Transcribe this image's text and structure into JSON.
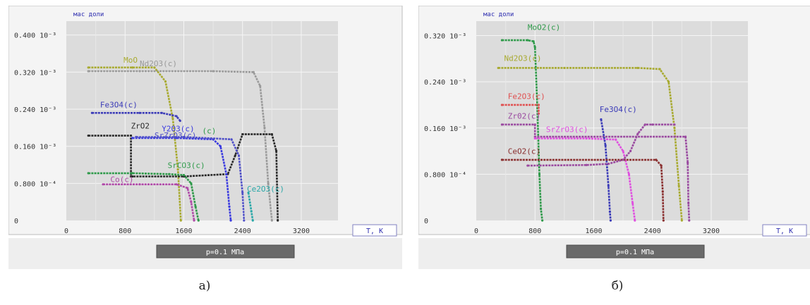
{
  "panels": [
    {
      "caption": "а)",
      "unit_label": "мас доли",
      "xlabel_box": "T, K",
      "status_bar": "p=0.1 МПа",
      "chart_data": {
        "type": "line",
        "xlabel": "T, K",
        "ylabel": "мас доли",
        "xlim": [
          0,
          3700
        ],
        "ylim": [
          0,
          0.43
        ],
        "xticks": [
          0,
          800,
          1600,
          2400,
          3200
        ],
        "yticks": [
          0,
          0.08,
          0.16,
          0.24,
          0.32,
          0.4
        ],
        "ytick_labels": [
          "0",
          "0.800 10⁻⁴",
          "0.160 10⁻³",
          "0.240 10⁻³",
          "0.320 10⁻³",
          "0.400 10⁻³"
        ],
        "grid": true,
        "series": [
          {
            "name": "Nd2O3(c)",
            "color": "#9a9a9a",
            "x": [
              300,
              1000,
              2000,
              2550,
              2640,
              2700,
              2750,
              2800
            ],
            "y": [
              0.322,
              0.322,
              0.322,
              0.32,
              0.29,
              0.2,
              0.08,
              0.0
            ]
          },
          {
            "name": "MoO",
            "color": "#a8aa30",
            "x": [
              300,
              900,
              1200,
              1350,
              1450,
              1520,
              1560
            ],
            "y": [
              0.33,
              0.33,
              0.33,
              0.3,
              0.22,
              0.11,
              0.0
            ]
          },
          {
            "name": "Fe3O4(c)",
            "color": "#3c3cb8",
            "x": [
              350,
              1000,
              1300,
              1500,
              1550
            ],
            "y": [
              0.232,
              0.232,
              0.232,
              0.225,
              0.215
            ]
          },
          {
            "name": "ZrO2",
            "color": "#2a2a2a",
            "x": [
              300,
              880,
              880,
              900,
              1600,
              2200,
              2300,
              2400,
              2800,
              2860,
              2880
            ],
            "y": [
              0.183,
              0.183,
              0.095,
              0.095,
              0.095,
              0.1,
              0.14,
              0.186,
              0.186,
              0.15,
              0.0
            ]
          },
          {
            "name": "Y2O3(c)",
            "color": "#3a3ae0",
            "x": [
              900,
              1500,
              2000,
              2100,
              2180,
              2220,
              2240
            ],
            "y": [
              0.178,
              0.178,
              0.175,
              0.16,
              0.1,
              0.03,
              0.0
            ]
          },
          {
            "name": "SrZrO3(c)",
            "color": "#5050c8",
            "x": [
              950,
              1600,
              2250,
              2350,
              2400,
              2420
            ],
            "y": [
              0.18,
              0.18,
              0.175,
              0.14,
              0.06,
              0.0
            ]
          },
          {
            "name": "SrCO3(c)",
            "color": "#2f9a4a",
            "x": [
              300,
              900,
              1400,
              1600,
              1700,
              1760,
              1800
            ],
            "y": [
              0.102,
              0.102,
              0.1,
              0.098,
              0.08,
              0.03,
              0.0
            ]
          },
          {
            "name": "Co(c)",
            "color": "#b04aa8",
            "x": [
              500,
              1000,
              1500,
              1650,
              1700,
              1740
            ],
            "y": [
              0.078,
              0.078,
              0.078,
              0.07,
              0.04,
              0.0
            ]
          },
          {
            "name": "Ce2O3(c)",
            "color": "#2aa8a8",
            "x": [
              2480,
              2520,
              2540
            ],
            "y": [
              0.06,
              0.02,
              0.0
            ]
          }
        ],
        "labels": [
          {
            "text": "MoO",
            "color": "#a8aa30",
            "x": 780,
            "y": 0.34
          },
          {
            "text": "Nd2O3(c)",
            "color": "#9a9a9a",
            "x": 1000,
            "y": 0.333
          },
          {
            "text": "Fe3O4(c)",
            "color": "#3c3cb8",
            "x": 460,
            "y": 0.244
          },
          {
            "text": "ZrO2",
            "color": "#2a2a2a",
            "x": 880,
            "y": 0.198
          },
          {
            "text": "Y2O3(c)",
            "color": "#3a3ae0",
            "x": 1300,
            "y": 0.192
          },
          {
            "text": "(c)",
            "color": "#2f9a4a",
            "x": 1850,
            "y": 0.188
          },
          {
            "text": "SrZrO3(c)",
            "color": "#5050c8",
            "x": 1200,
            "y": 0.178
          },
          {
            "text": "SrCO3(c)",
            "color": "#2f9a4a",
            "x": 1380,
            "y": 0.113
          },
          {
            "text": "Co(c)",
            "color": "#b04aa8",
            "x": 600,
            "y": 0.083
          },
          {
            "text": "Ce2O3(c)",
            "color": "#2aa8a8",
            "x": 2460,
            "y": 0.062
          }
        ]
      }
    },
    {
      "caption": "б)",
      "unit_label": "мас доли",
      "xlabel_box": "T, K",
      "status_bar": "p=0.1 МПа",
      "chart_data": {
        "type": "line",
        "xlabel": "T, K",
        "ylabel": "мас доли",
        "xlim": [
          0,
          3700
        ],
        "ylim": [
          0,
          0.345
        ],
        "xticks": [
          0,
          800,
          1600,
          2400,
          3200
        ],
        "yticks": [
          0,
          0.08,
          0.16,
          0.24,
          0.32
        ],
        "ytick_labels": [
          "0",
          "0.800 10⁻⁴",
          "0.160 10⁻³",
          "0.240 10⁻³",
          "0.320 10⁻³"
        ],
        "grid": true,
        "series": [
          {
            "name": "Nd2O3(c)",
            "color": "#a8aa30",
            "x": [
              300,
              1200,
              2200,
              2500,
              2620,
              2700,
              2760,
              2800
            ],
            "y": [
              0.264,
              0.264,
              0.264,
              0.262,
              0.24,
              0.16,
              0.06,
              0.0
            ]
          },
          {
            "name": "MoO2(c)",
            "color": "#2f9a4a",
            "x": [
              350,
              700,
              780,
              800,
              830,
              860,
              880,
              900
            ],
            "y": [
              0.312,
              0.312,
              0.31,
              0.3,
              0.2,
              0.08,
              0.02,
              0.0
            ]
          },
          {
            "name": "Fe2O3(c)",
            "color": "#e05050",
            "x": [
              350,
              850,
              850
            ],
            "y": [
              0.2,
              0.2,
              0.185
            ]
          },
          {
            "name": "ZrO2(c)",
            "color": "#9a4aa0",
            "x": [
              350,
              800,
              800,
              2300,
              2700,
              2850,
              2880,
              2890,
              2900
            ],
            "y": [
              0.166,
              0.166,
              0.145,
              0.145,
              0.145,
              0.145,
              0.1,
              0.03,
              0.0
            ]
          },
          {
            "name": "SrZrO3(c)",
            "color": "#e050e0",
            "x": [
              800,
              1500,
              1900,
              2000,
              2080,
              2130,
              2160
            ],
            "y": [
              0.142,
              0.142,
              0.14,
              0.12,
              0.08,
              0.03,
              0.0
            ]
          },
          {
            "name": "Fe3O4(c)",
            "color": "#3c3cb8",
            "x": [
              1700,
              1760,
              1800,
              1820,
              1830
            ],
            "y": [
              0.175,
              0.13,
              0.06,
              0.015,
              0.0
            ]
          },
          {
            "name": "CeO2(c)",
            "color": "#8a3030",
            "x": [
              350,
              2000,
              2450,
              2520,
              2540,
              2550
            ],
            "y": [
              0.105,
              0.105,
              0.105,
              0.095,
              0.05,
              0.0
            ]
          },
          {
            "name": "",
            "color": "#9a4aa0",
            "x": [
              700,
              1500,
              1800,
              2000,
              2100,
              2200,
              2300,
              2400,
              2700
            ],
            "y": [
              0.095,
              0.096,
              0.098,
              0.105,
              0.12,
              0.15,
              0.166,
              0.166,
              0.166
            ]
          }
        ],
        "labels": [
          {
            "text": "MoO2(c)",
            "color": "#2f9a4a",
            "x": 700,
            "y": 0.33
          },
          {
            "text": "Nd2O3(c)",
            "color": "#a8aa30",
            "x": 380,
            "y": 0.276
          },
          {
            "text": "Fe2O3(c)",
            "color": "#e05050",
            "x": 430,
            "y": 0.21
          },
          {
            "text": "Zr02(c)",
            "color": "#9a4aa0",
            "x": 430,
            "y": 0.176
          },
          {
            "text": "Fe3O4(c)",
            "color": "#3c3cb8",
            "x": 1680,
            "y": 0.188
          },
          {
            "text": "SrZrO3(c)",
            "color": "#e050e0",
            "x": 950,
            "y": 0.153
          },
          {
            "text": "CeO2(c)",
            "color": "#8a3030",
            "x": 430,
            "y": 0.115
          }
        ]
      }
    }
  ]
}
